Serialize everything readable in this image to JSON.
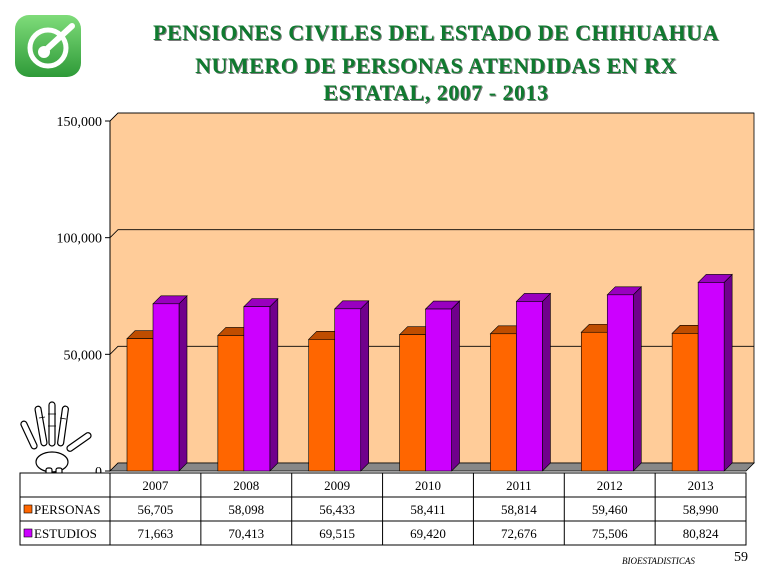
{
  "header": {
    "title_line1": "PENSIONES  CIVILES  DEL  ESTADO  DE  CHIHUAHUA",
    "title_line2": "NUMERO DE PERSONAS ATENDIDAS EN RX",
    "title_line3": "ESTATAL,  2007  - 2013"
  },
  "colors": {
    "title": "#0f7a2f",
    "plot_back": "#ffcc99",
    "personas": "#ff6600",
    "estudios": "#cc00ff",
    "logo": "#3cb043"
  },
  "icons": {
    "logo": "pensiones-logo-icon",
    "hand": "hand-xray-icon"
  },
  "footer": {
    "credit": "BIOESTADISTICAS",
    "page_number": "59"
  },
  "chart_data": {
    "type": "bar",
    "categories": [
      "2007",
      "2008",
      "2009",
      "2010",
      "2011",
      "2012",
      "2013"
    ],
    "series": [
      {
        "name": "PERSONAS",
        "values": [
          56705,
          58098,
          56433,
          58411,
          58814,
          59460,
          58990
        ],
        "labels": [
          "56,705",
          "58,098",
          "56,433",
          "58,411",
          "58,814",
          "59,460",
          "58,990"
        ],
        "color": "#ff6600"
      },
      {
        "name": "ESTUDIOS",
        "values": [
          71663,
          70413,
          69515,
          69420,
          72676,
          75506,
          80824
        ],
        "labels": [
          "71,663",
          "70,413",
          "69,515",
          "69,420",
          "72,676",
          "75,506",
          "80,824"
        ],
        "color": "#cc00ff"
      }
    ],
    "ylim": [
      0,
      150000
    ],
    "yticks": [
      0,
      50000,
      100000,
      150000
    ],
    "ytick_labels": [
      "0",
      "50,000",
      "100,000",
      "150,000"
    ],
    "grid": true,
    "legend": "data-table-below"
  }
}
